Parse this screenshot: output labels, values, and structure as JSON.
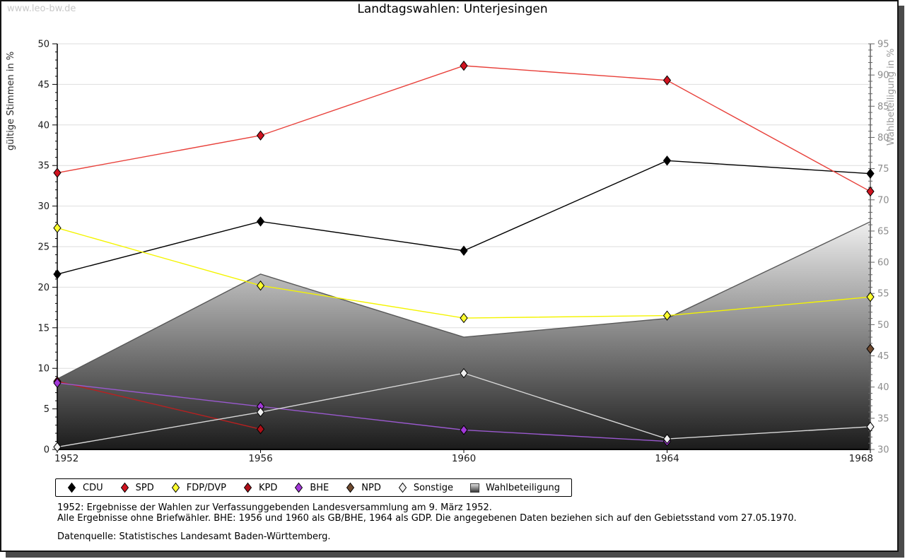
{
  "watermark": "www.leo-bw.de",
  "title": "Landtagswahlen: Unterjesingen",
  "axes": {
    "left": {
      "label": "gültige Stimmen in %",
      "ticks": [
        0,
        5,
        10,
        15,
        20,
        25,
        30,
        35,
        40,
        45,
        50
      ],
      "minor_step": 1
    },
    "right": {
      "label": "Wahlbeteiligung in %",
      "ticks": [
        30,
        35,
        40,
        45,
        50,
        55,
        60,
        65,
        70,
        75,
        80,
        85,
        90,
        95
      ],
      "minor_step": 1
    },
    "x": {
      "tick_labels": [
        "1952",
        "1956",
        "1960",
        "1964",
        "1968"
      ]
    }
  },
  "footnotes": {
    "line1": "1952: Ergebnisse der Wahlen zur Verfassunggebenden Landesversammlung am 9. März 1952.",
    "line2": "Alle Ergebnisse ohne Briefwähler. BHE: 1956 und 1960 als GB/BHE, 1964 als GDP. Die angegebenen Daten beziehen sich auf den Gebietsstand vom 27.05.1970.",
    "line3": "Datenquelle: Statistisches Landesamt Baden-Württemberg."
  },
  "chart_data": {
    "type": "line",
    "title": "Landtagswahlen: Unterjesingen",
    "x": [
      1952,
      1956,
      1960,
      1964,
      1968
    ],
    "ylabel_left": "gültige Stimmen in %",
    "ylabel_right": "Wahlbeteiligung in %",
    "ylim_left": [
      0,
      50
    ],
    "ylim_right": [
      30,
      95
    ],
    "grid": true,
    "legend_position": "bottom",
    "gridline_color": "#dedede",
    "series": [
      {
        "name": "CDU",
        "type": "line",
        "axis": "left",
        "line_color": "#000000",
        "marker_fill": "#000000",
        "values": [
          21.6,
          28.1,
          24.5,
          35.6,
          34.0
        ]
      },
      {
        "name": "SPD",
        "type": "line",
        "axis": "left",
        "line_color": "#e8403a",
        "marker_fill": "#cf131f",
        "values": [
          34.1,
          38.7,
          47.3,
          45.5,
          31.8
        ]
      },
      {
        "name": "FDP/DVP",
        "type": "line",
        "axis": "left",
        "line_color": "#f4f400",
        "marker_fill": "#ffff2e",
        "values": [
          27.3,
          20.2,
          16.2,
          16.5,
          18.8
        ]
      },
      {
        "name": "KPD",
        "type": "line",
        "axis": "left",
        "line_color": "#b92020",
        "marker_fill": "#ae0f18",
        "values": [
          8.4,
          2.5,
          null,
          null,
          null
        ]
      },
      {
        "name": "BHE",
        "type": "line",
        "axis": "left",
        "line_color": "#9a59cf",
        "marker_fill": "#a238d8",
        "values": [
          8.2,
          5.3,
          2.4,
          1.0,
          null
        ]
      },
      {
        "name": "NPD",
        "type": "line",
        "axis": "left",
        "line_color": "#6f4a2f",
        "marker_fill": "#6f4a2f",
        "values": [
          null,
          null,
          null,
          null,
          12.4
        ]
      },
      {
        "name": "Sonstige",
        "type": "line",
        "axis": "left",
        "line_color": "#d8d8d8",
        "marker_fill": "#f0f0f0",
        "values": [
          0.3,
          4.6,
          9.4,
          1.3,
          2.8
        ]
      },
      {
        "name": "Wahlbeteiligung",
        "type": "area",
        "axis": "right",
        "line_color": "#585858",
        "area_gradient": [
          "#ffffff",
          "#181818"
        ],
        "values": [
          41.3,
          58.1,
          48.0,
          51.0,
          66.5
        ]
      }
    ]
  }
}
